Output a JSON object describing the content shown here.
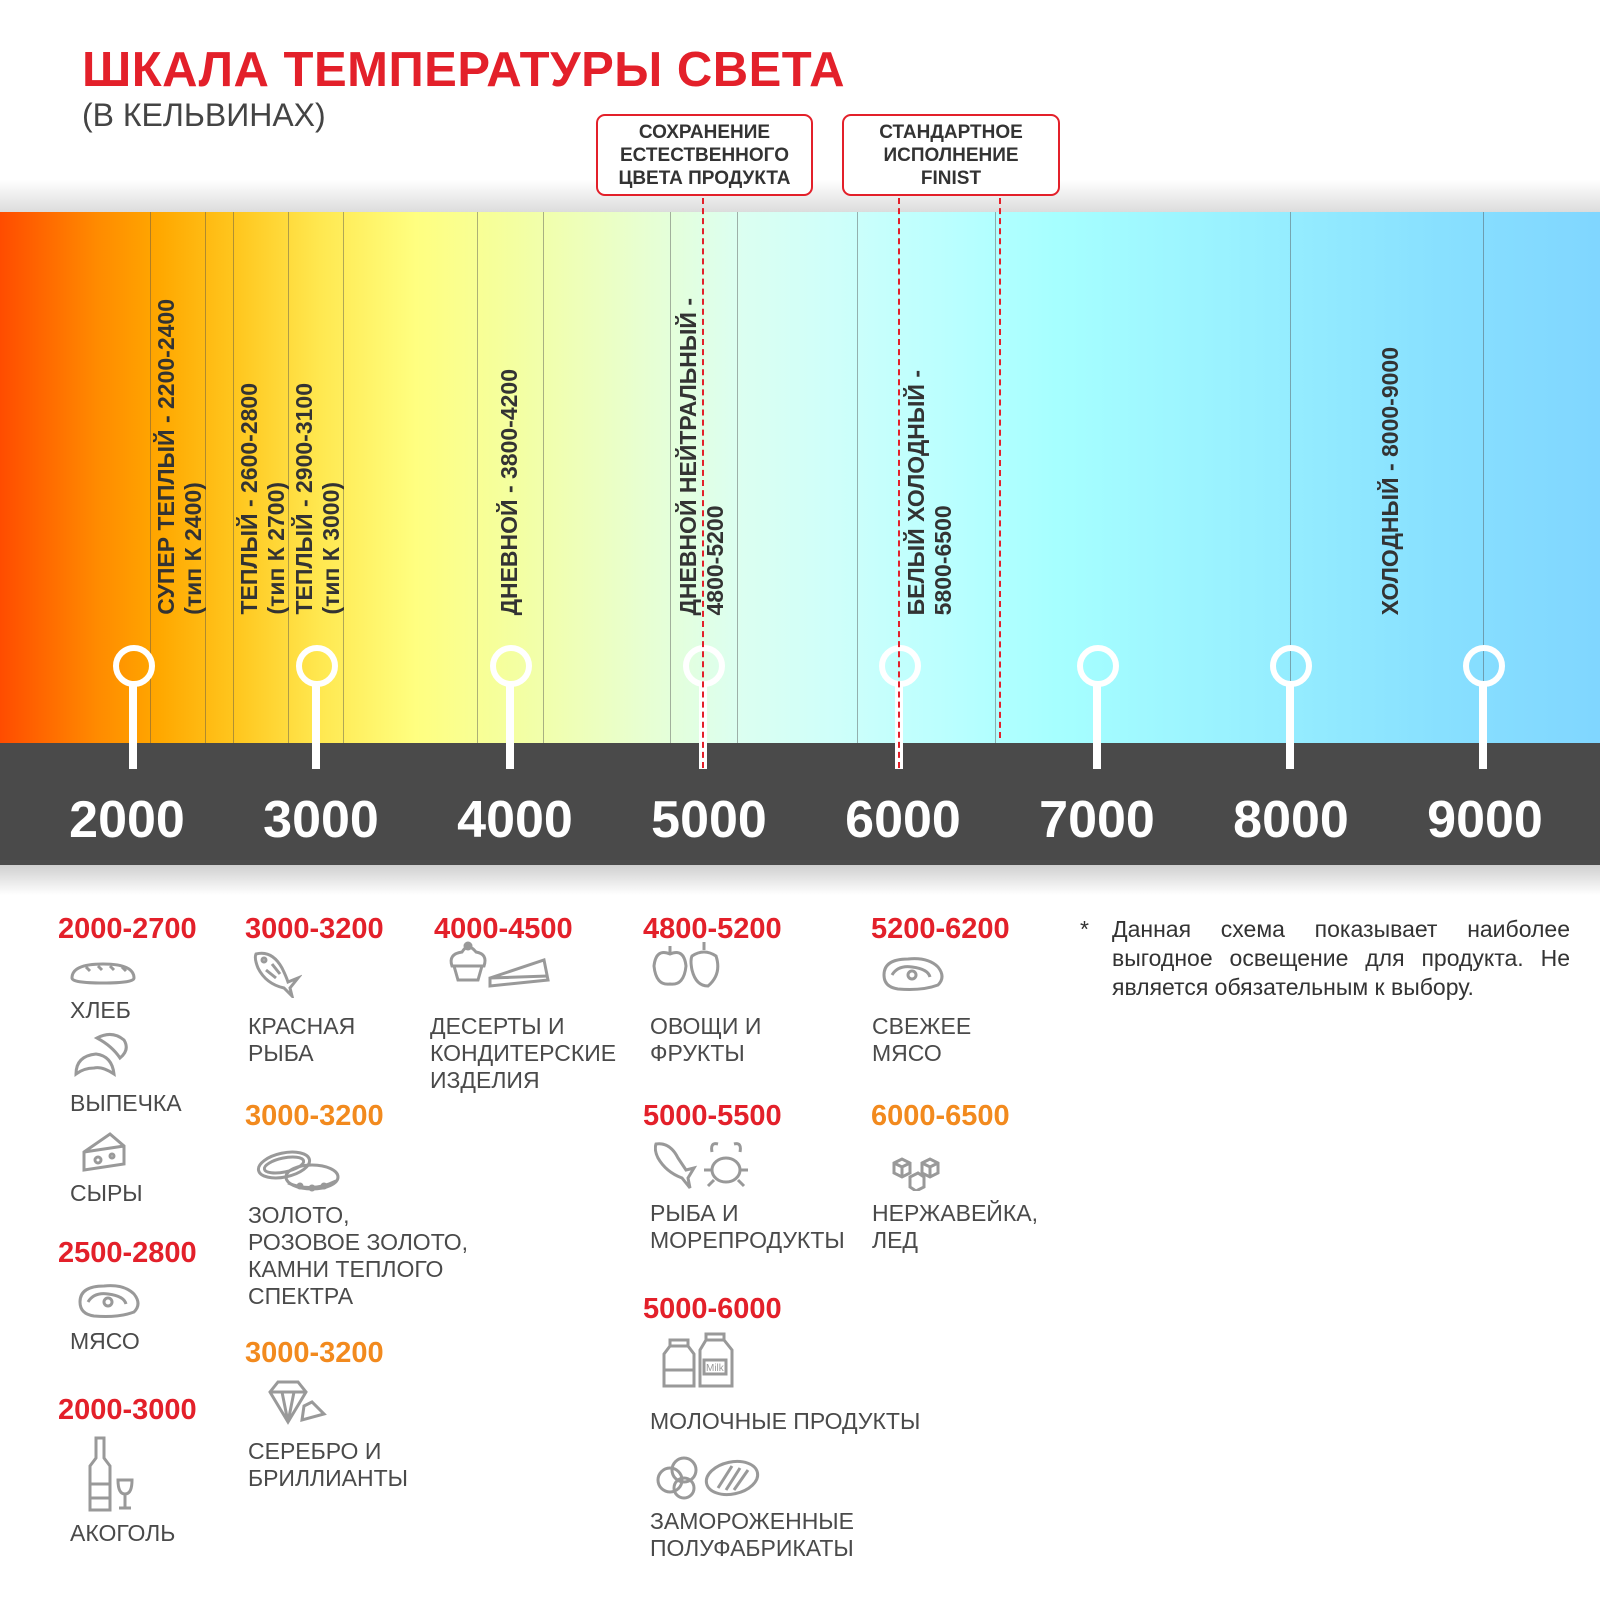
{
  "header": {
    "title": "ШКАЛА ТЕМПЕРАТУРЫ СВЕТА",
    "subtitle": "(В КЕЛЬВИНАХ)"
  },
  "callouts": [
    {
      "lines": [
        "СОХРАНЕНИЕ",
        "ЕСТЕСТВЕННОГО",
        "ЦВЕТА ПРОДУКТА"
      ]
    },
    {
      "lines": [
        "СТАНДАРТНОЕ",
        "ИСПОЛНЕНИЕ",
        "FINIST"
      ]
    }
  ],
  "scale": {
    "ticks": [
      "2000",
      "3000",
      "4000",
      "5000",
      "6000",
      "7000",
      "8000",
      "9000"
    ],
    "bands": [
      {
        "lines": [
          "СУПЕР ТЕПЛЫЙ - 2200-2400",
          "(тип К 2400)"
        ]
      },
      {
        "lines": [
          "ТЕПЛЫЙ - 2600-2800",
          "(тип К 2700)"
        ]
      },
      {
        "lines": [
          "ТЕПЛЫЙ - 2900-3100",
          "(тип К 3000)"
        ]
      },
      {
        "lines": [
          "ДНЕВНОЙ - 3800-4200"
        ]
      },
      {
        "lines": [
          "ДНЕВНОЙ НЕЙТРАЛЬНЫЙ -",
          "4800-5200"
        ]
      },
      {
        "lines": [
          "БЕЛЫЙ ХОЛОДНЫЙ -",
          "5800-6500"
        ]
      },
      {
        "lines": [
          "ХОЛОДНЫЙ - 8000-9000"
        ]
      }
    ],
    "gradient_colors": [
      "#ff4c00",
      "#ffa800",
      "#ffff80",
      "#dcfff0",
      "#a6ffff",
      "#80d6ff"
    ]
  },
  "colors": {
    "title_red": "#e3202a",
    "range_red": "#e3202a",
    "range_orange": "#f28a1e",
    "bar": "#4a4a4a"
  },
  "products": {
    "c1": [
      {
        "range": "2000-2700",
        "items": [
          {
            "label": "ХЛЕБ",
            "icon": "bread-icon"
          },
          {
            "label": "ВЫПЕЧКА",
            "icon": "croissant-icon"
          },
          {
            "label": "СЫРЫ",
            "icon": "cheese-icon"
          }
        ]
      },
      {
        "range": "2500-2800",
        "items": [
          {
            "label": "МЯСО",
            "icon": "steak-icon"
          }
        ]
      },
      {
        "range": "2000-3000",
        "items": [
          {
            "label": "АКОГОЛЬ",
            "icon": "bottle-glass-icon"
          }
        ]
      }
    ],
    "c2": [
      {
        "range": "3000-3200",
        "items": [
          {
            "label": [
              "КРАСНАЯ",
              "РЫБА"
            ],
            "icon": "fish-icon"
          }
        ]
      },
      {
        "range": "3000-3200",
        "items": [
          {
            "label": [
              "ЗОЛОТО,",
              "РОЗОВОЕ ЗОЛОТО,",
              "КАМНИ ТЕПЛОГО",
              "СПЕКТРА"
            ],
            "icon": "rings-icon"
          }
        ]
      },
      {
        "range": "3000-3200",
        "items": [
          {
            "label": [
              "СЕРЕБРО И",
              "БРИЛЛИАНТЫ"
            ],
            "icon": "diamond-icon"
          }
        ]
      }
    ],
    "c3": [
      {
        "range": "4000-4500",
        "items": [
          {
            "label": [
              "ДЕСЕРТЫ И",
              "КОНДИТЕРСКИЕ",
              "ИЗДЕЛИЯ"
            ],
            "icon": "cake-icon"
          }
        ]
      }
    ],
    "c4": [
      {
        "range": "4800-5200",
        "items": [
          {
            "label": [
              "ОВОЩИ И",
              "ФРУКТЫ"
            ],
            "icon": "apple-pepper-icon"
          }
        ]
      },
      {
        "range": "5000-5500",
        "items": [
          {
            "label": [
              "РЫБА И",
              "МОРЕПРОДУКТЫ"
            ],
            "icon": "fish-crab-icon"
          }
        ]
      },
      {
        "range": "5000-6000",
        "items": [
          {
            "label": "МОЛОЧНЫЕ ПРОДУКТЫ",
            "icon": "milk-cartons-icon",
            "icon_text": "Milk"
          },
          {
            "label": [
              "ЗАМОРОЖЕННЫЕ",
              "ПОЛУФАБРИКАТЫ"
            ],
            "icon": "frozen-food-icon"
          }
        ]
      }
    ],
    "c5": [
      {
        "range": "5200-6200",
        "items": [
          {
            "label": [
              "СВЕЖЕЕ",
              "МЯСО"
            ],
            "icon": "steak-icon"
          }
        ]
      },
      {
        "range": "6000-6500",
        "items": [
          {
            "label": [
              "НЕРЖАВЕЙКА,",
              "ЛЕД"
            ],
            "icon": "ice-cubes-icon"
          }
        ]
      }
    ]
  },
  "note": {
    "star": "*",
    "text": "Данная схема показывает наиболее выгодное освещение для продукта. Не является обязательным к выбору."
  }
}
